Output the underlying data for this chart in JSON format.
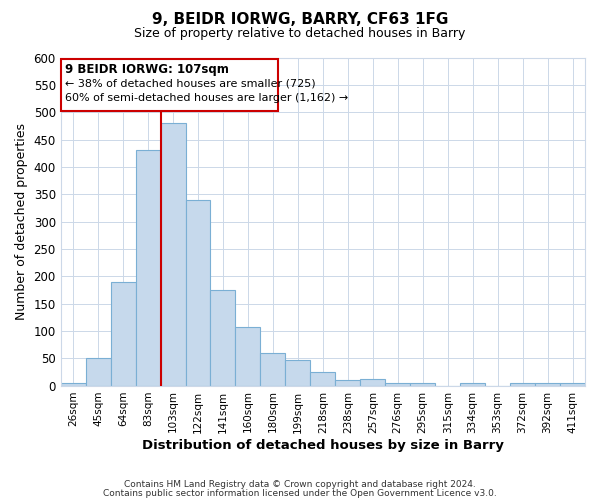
{
  "title": "9, BEIDR IORWG, BARRY, CF63 1FG",
  "subtitle": "Size of property relative to detached houses in Barry",
  "xlabel": "Distribution of detached houses by size in Barry",
  "ylabel": "Number of detached properties",
  "bar_labels": [
    "26sqm",
    "45sqm",
    "64sqm",
    "83sqm",
    "103sqm",
    "122sqm",
    "141sqm",
    "160sqm",
    "180sqm",
    "199sqm",
    "218sqm",
    "238sqm",
    "257sqm",
    "276sqm",
    "295sqm",
    "315sqm",
    "334sqm",
    "353sqm",
    "372sqm",
    "392sqm",
    "411sqm"
  ],
  "bar_values": [
    5,
    50,
    190,
    430,
    480,
    340,
    175,
    108,
    60,
    47,
    25,
    10,
    12,
    5,
    5,
    0,
    5,
    0,
    5,
    5,
    5
  ],
  "bar_color": "#c6d9ec",
  "bar_edge_color": "#7aafd4",
  "vline_index": 4,
  "vline_color": "#cc0000",
  "ylim": [
    0,
    600
  ],
  "yticks": [
    0,
    50,
    100,
    150,
    200,
    250,
    300,
    350,
    400,
    450,
    500,
    550,
    600
  ],
  "annotation_title": "9 BEIDR IORWG: 107sqm",
  "annotation_line1": "← 38% of detached houses are smaller (725)",
  "annotation_line2": "60% of semi-detached houses are larger (1,162) →",
  "footer1": "Contains HM Land Registry data © Crown copyright and database right 2024.",
  "footer2": "Contains public sector information licensed under the Open Government Licence v3.0.",
  "background_color": "#ffffff",
  "grid_color": "#ccd8e8",
  "figwidth": 6.0,
  "figheight": 5.0,
  "dpi": 100
}
